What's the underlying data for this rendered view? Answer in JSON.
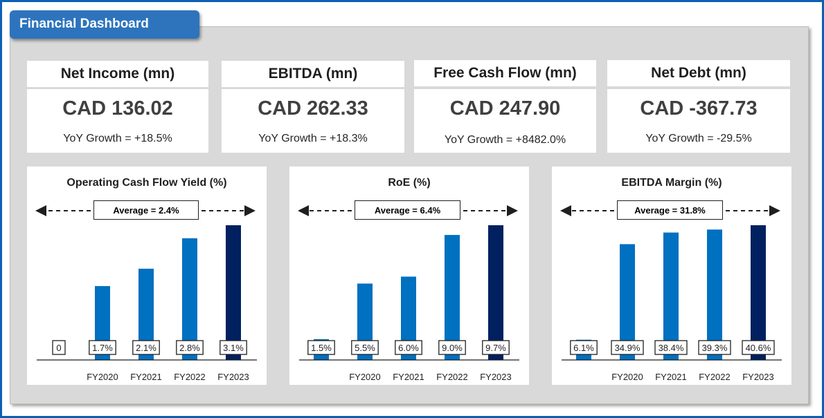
{
  "dashboard": {
    "title": "Financial Dashboard"
  },
  "kpis": [
    {
      "label": "Net Income (mn)",
      "value": "CAD 136.02",
      "growth": "YoY Growth = +18.5%"
    },
    {
      "label": "EBITDA (mn)",
      "value": "CAD 262.33",
      "growth": "YoY Growth = +18.3%"
    },
    {
      "label": "Free Cash Flow (mn)",
      "value": "CAD 247.90",
      "growth": "YoY Growth = +8482.0%"
    },
    {
      "label": "Net Debt (mn)",
      "value": "CAD -367.73",
      "growth": "YoY Growth = -29.5%"
    }
  ],
  "colors": {
    "bar": "#0070c0",
    "bar_last": "#002060",
    "accent": "#2d74bd",
    "border": "#0b5fb5"
  },
  "chart_data": [
    {
      "type": "bar",
      "title": "Operating Cash Flow Yield (%)",
      "average_label": "Average = 2.4%",
      "categories": [
        "",
        "FY2020",
        "FY2021",
        "FY2022",
        "FY2023"
      ],
      "values": [
        0,
        1.7,
        2.1,
        2.8,
        3.1
      ],
      "data_labels": [
        "0",
        "1.7%",
        "2.1%",
        "2.8%",
        "3.1%"
      ],
      "ylim": [
        0,
        3.1
      ]
    },
    {
      "type": "bar",
      "title": "RoE (%)",
      "average_label": "Average = 6.4%",
      "categories": [
        "",
        "FY2020",
        "FY2021",
        "FY2022",
        "FY2023"
      ],
      "values": [
        1.5,
        5.5,
        6.0,
        9.0,
        9.7
      ],
      "data_labels": [
        "1.5%",
        "5.5%",
        "6.0%",
        "9.0%",
        "9.7%"
      ],
      "ylim": [
        0,
        9.7
      ]
    },
    {
      "type": "bar",
      "title": "EBITDA Margin (%)",
      "average_label": "Average = 31.8%",
      "categories": [
        "",
        "FY2020",
        "FY2021",
        "FY2022",
        "FY2023"
      ],
      "values": [
        6.1,
        34.9,
        38.4,
        39.3,
        40.6
      ],
      "data_labels": [
        "6.1%",
        "34.9%",
        "38.4%",
        "39.3%",
        "40.6%"
      ],
      "ylim": [
        0,
        40.6
      ]
    }
  ]
}
